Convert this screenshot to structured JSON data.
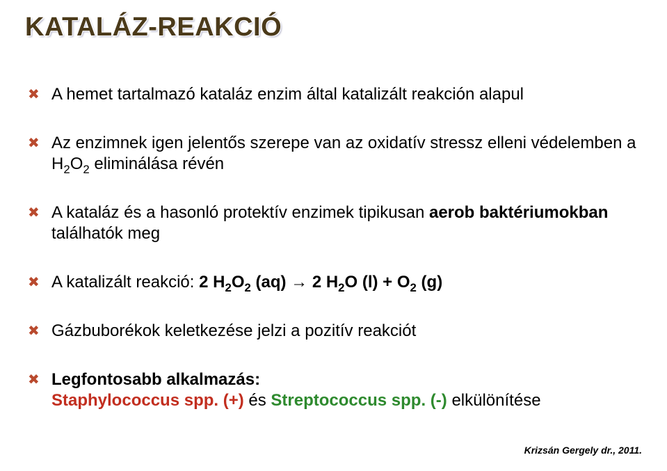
{
  "title": "KATALÁZ-REAKCIÓ",
  "bullets": [
    {
      "html": "A hemet tartalmazó kataláz enzim által katalizált reakción alapul"
    },
    {
      "html": "Az enzimnek igen jelentős szerepe van az oxidatív stressz elleni védelemben a H<sub>2</sub>O<sub>2</sub> eliminálása révén"
    },
    {
      "html": "A kataláz és a hasonló protektív enzimek tipikusan <span class=\"bold\">aerob baktériumokban</span> találhatók meg"
    },
    {
      "html": "A katalizált reakció: <span class=\"bold\">2 H<sub>2</sub>O<sub>2</sub> (aq) → 2 H<sub>2</sub>O (l) + O<sub>2</sub> (g)</span>"
    },
    {
      "html": "Gázbuborékok keletkezése jelzi a pozitív reakciót"
    },
    {
      "html": "<span class=\"bold\">Legfontosabb alkalmazás:</span><br><span class=\"bold red\">Staphylococcus spp. (+)</span> és <span class=\"bold green\">Streptococcus spp. (-)</span> elkülönítése"
    }
  ],
  "footer": "Krizsán Gergely dr., 2011.",
  "colors": {
    "title": "#4b3a1a",
    "bullet_marker": "#b94a2e",
    "red_text": "#c22e1f",
    "green_text": "#2e8a2e",
    "background": "#ffffff",
    "body_text": "#000000"
  },
  "typography": {
    "title_fontsize": 38,
    "title_weight": 900,
    "body_fontsize": 24,
    "footer_fontsize": 14,
    "font_family": "Arial"
  }
}
